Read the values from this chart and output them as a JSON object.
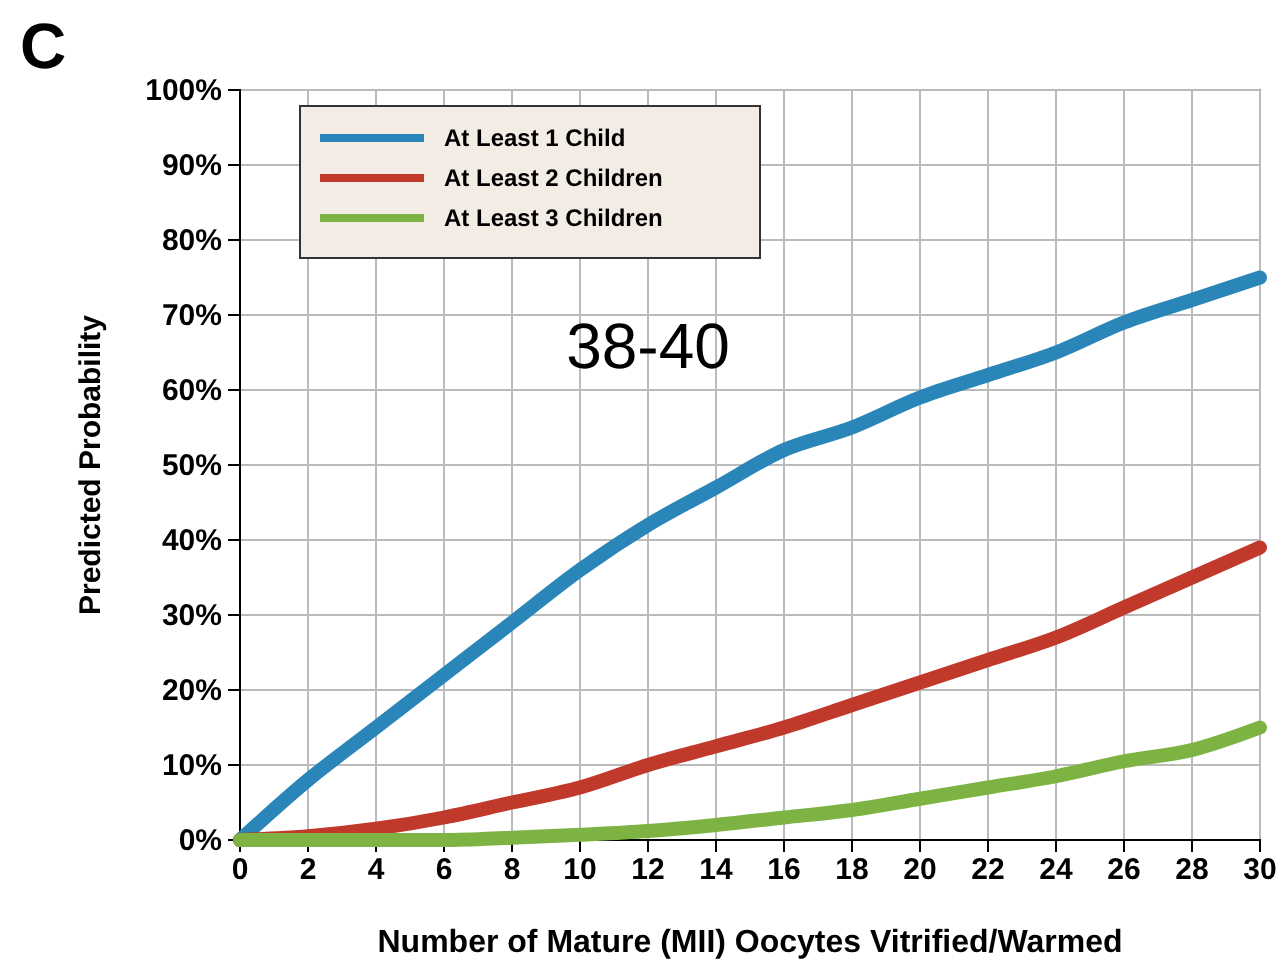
{
  "chart_data": {
    "type": "line",
    "xlabel": "Number of Mature (MII) Oocytes Vitrified/Warmed",
    "ylabel": "Predicted Probability",
    "annotations": [
      "C",
      "38-40"
    ],
    "x": [
      0,
      2,
      4,
      6,
      8,
      10,
      12,
      14,
      16,
      18,
      20,
      22,
      24,
      26,
      28,
      30
    ],
    "series": [
      {
        "name": "At Least 1 Child",
        "color": "#2a86b8",
        "values": [
          0,
          8,
          15,
          22,
          29,
          36,
          42,
          47,
          52,
          55,
          59,
          62,
          65,
          69,
          72,
          75
        ]
      },
      {
        "name": "At Least 2 Children",
        "color": "#c0392b",
        "values": [
          0,
          0.5,
          1.5,
          3,
          5,
          7,
          10,
          12.5,
          15,
          18,
          21,
          24,
          27,
          31,
          35,
          39
        ]
      },
      {
        "name": "At Least 3 Children",
        "color": "#7cb342",
        "values": [
          0,
          0,
          0,
          0,
          0.3,
          0.7,
          1.2,
          2,
          3,
          4,
          5.5,
          7,
          8.5,
          10.5,
          12,
          15
        ]
      }
    ],
    "xlim": [
      0,
      30
    ],
    "xticks": [
      0,
      2,
      4,
      6,
      8,
      10,
      12,
      14,
      16,
      18,
      20,
      22,
      24,
      26,
      28,
      30
    ],
    "ylim": [
      0,
      100
    ],
    "yticks": [
      {
        "value": 0,
        "label": "0%"
      },
      {
        "value": 10,
        "label": "10%"
      },
      {
        "value": 20,
        "label": "20%"
      },
      {
        "value": 30,
        "label": "30%"
      },
      {
        "value": 40,
        "label": "40%"
      },
      {
        "value": 50,
        "label": "50%"
      },
      {
        "value": 60,
        "label": "60%"
      },
      {
        "value": 70,
        "label": "70%"
      },
      {
        "value": 80,
        "label": "80%"
      },
      {
        "value": 90,
        "label": "90%"
      },
      {
        "value": 100,
        "label": "100%"
      }
    ],
    "grid": true,
    "legend": "top left",
    "marker": "none",
    "line_style": "solid"
  }
}
